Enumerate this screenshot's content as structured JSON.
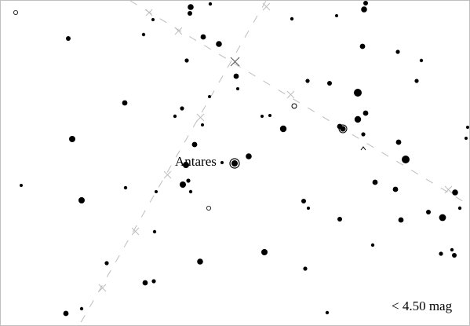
{
  "map": {
    "star_label": "Antares",
    "magnitude_limit": "< 4.50 mag",
    "colors": {
      "background": "#ffffff",
      "stars": "#000000",
      "guide_lines": "#bdbdbd",
      "border": "#bfbfbf"
    }
  }
}
